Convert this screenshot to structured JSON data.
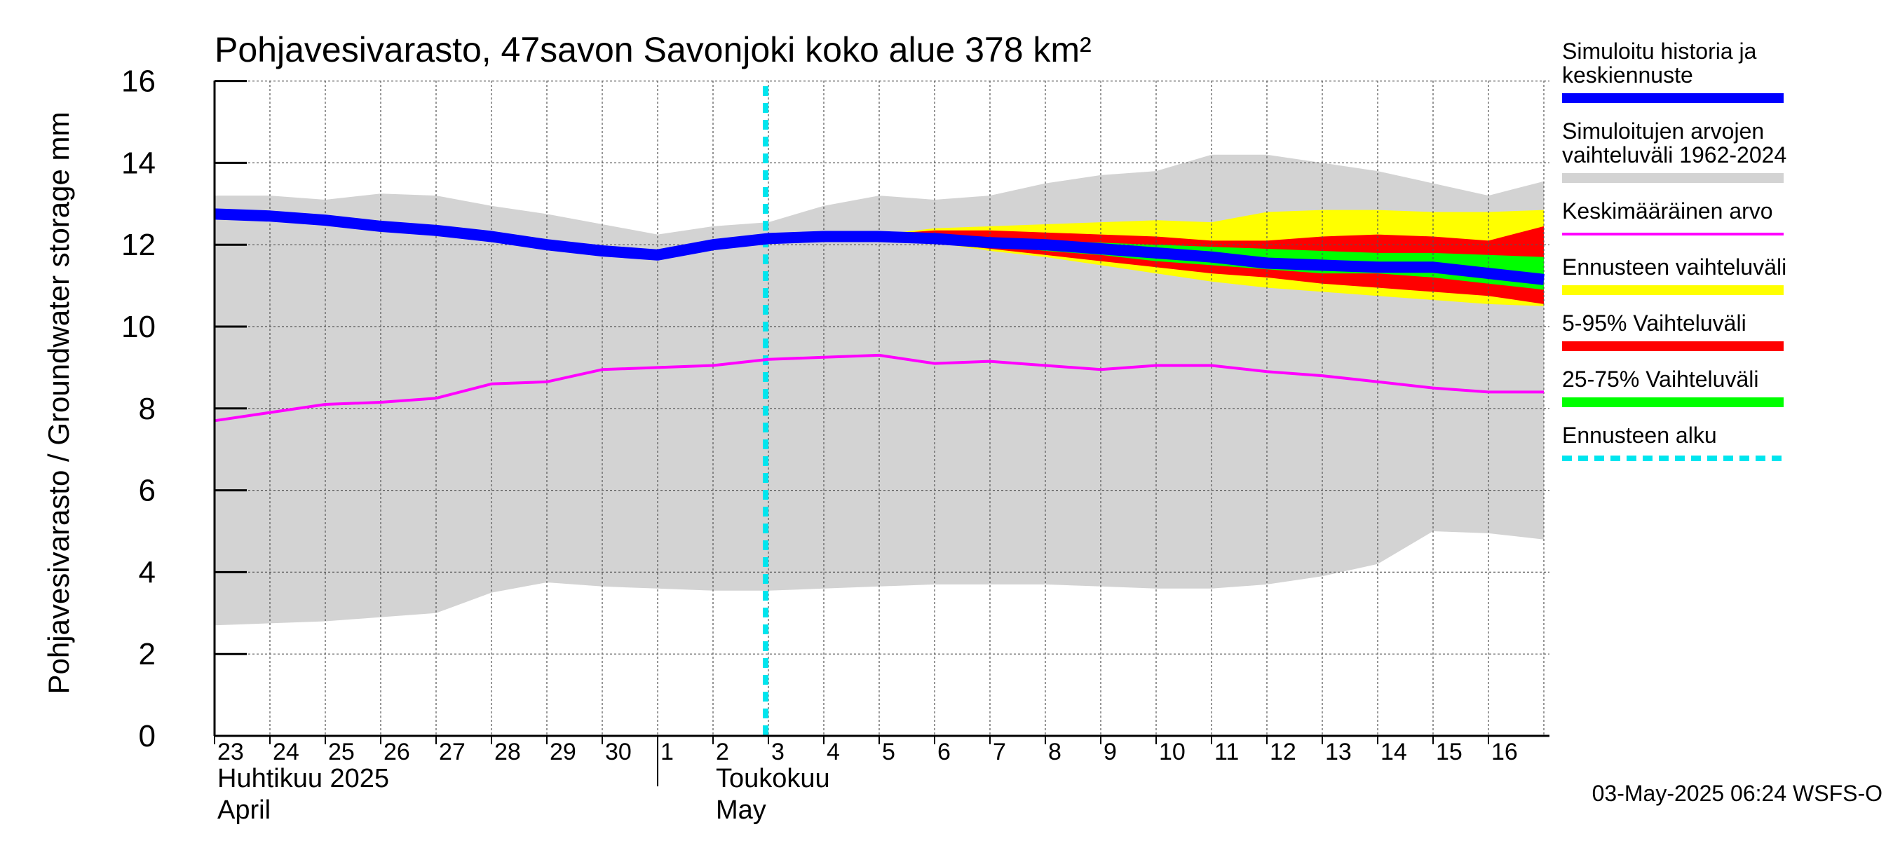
{
  "chart_data": {
    "type": "area",
    "title": "Pohjavesivarasto, 47savon Savonjoki koko alue 378 km²",
    "ylabel": "Pohjavesivarasto / Groundwater storage   mm",
    "ylim": [
      0,
      16
    ],
    "yticks": [
      "0",
      "2",
      "4",
      "6",
      "8",
      "10",
      "12",
      "14",
      "16"
    ],
    "xlim": [
      0,
      24
    ],
    "x_ticks": [
      {
        "x": 0,
        "label": "23"
      },
      {
        "x": 1,
        "label": "24"
      },
      {
        "x": 2,
        "label": "25"
      },
      {
        "x": 3,
        "label": "26"
      },
      {
        "x": 4,
        "label": "27"
      },
      {
        "x": 5,
        "label": "28"
      },
      {
        "x": 6,
        "label": "29"
      },
      {
        "x": 7,
        "label": "30"
      },
      {
        "x": 8,
        "label": "1"
      },
      {
        "x": 9,
        "label": "2"
      },
      {
        "x": 10,
        "label": "3"
      },
      {
        "x": 11,
        "label": "4"
      },
      {
        "x": 12,
        "label": "5"
      },
      {
        "x": 13,
        "label": "6"
      },
      {
        "x": 14,
        "label": "7"
      },
      {
        "x": 15,
        "label": "8"
      },
      {
        "x": 16,
        "label": "9"
      },
      {
        "x": 17,
        "label": "10"
      },
      {
        "x": 18,
        "label": "11"
      },
      {
        "x": 19,
        "label": "12"
      },
      {
        "x": 20,
        "label": "13"
      },
      {
        "x": 21,
        "label": "14"
      },
      {
        "x": 22,
        "label": "15"
      },
      {
        "x": 23,
        "label": "16"
      }
    ],
    "month_labels": [
      {
        "x": 0,
        "line1": "Huhtikuu  2025",
        "line2": "April"
      },
      {
        "x": 9,
        "line1": "Toukokuu",
        "line2": "May"
      }
    ],
    "month_divider_x": 8,
    "forecast_start_x": 10,
    "grid": true,
    "series": [
      {
        "name": "Simuloitujen arvojen vaihteluväli 1962-2024",
        "kind": "band",
        "color": "#d3d3d3",
        "x": [
          0,
          1,
          2,
          3,
          4,
          5,
          6,
          7,
          8,
          9,
          10,
          11,
          12,
          13,
          14,
          15,
          16,
          17,
          18,
          19,
          20,
          21,
          22,
          23,
          24
        ],
        "upper": [
          13.2,
          13.2,
          13.1,
          13.25,
          13.2,
          12.95,
          12.75,
          12.5,
          12.25,
          12.45,
          12.55,
          12.95,
          13.2,
          13.1,
          13.2,
          13.5,
          13.7,
          13.8,
          14.2,
          14.2,
          14.0,
          13.8,
          13.5,
          13.2,
          13.55
        ],
        "lower": [
          2.7,
          2.75,
          2.8,
          2.9,
          3.0,
          3.5,
          3.75,
          3.65,
          3.6,
          3.55,
          3.55,
          3.6,
          3.65,
          3.7,
          3.7,
          3.7,
          3.65,
          3.6,
          3.6,
          3.7,
          3.9,
          4.2,
          5.0,
          4.95,
          4.8
        ]
      },
      {
        "name": "Ennusteen vaihteluväli",
        "kind": "band",
        "color": "#ffff00",
        "x": [
          12,
          13,
          14,
          15,
          16,
          17,
          18,
          19,
          20,
          21,
          22,
          23,
          24
        ],
        "upper": [
          12.25,
          12.4,
          12.45,
          12.5,
          12.55,
          12.6,
          12.55,
          12.8,
          12.85,
          12.85,
          12.8,
          12.8,
          12.85
        ],
        "lower": [
          12.2,
          12.05,
          11.85,
          11.7,
          11.5,
          11.3,
          11.1,
          10.95,
          10.85,
          10.75,
          10.65,
          10.55,
          10.5
        ]
      },
      {
        "name": "5-95% Vaihteluväli",
        "kind": "band",
        "color": "#ff0000",
        "x": [
          12,
          13,
          14,
          15,
          16,
          17,
          18,
          19,
          20,
          21,
          22,
          23,
          24
        ],
        "upper": [
          12.25,
          12.35,
          12.35,
          12.3,
          12.25,
          12.2,
          12.1,
          12.1,
          12.2,
          12.25,
          12.2,
          12.1,
          12.45
        ],
        "lower": [
          12.2,
          12.05,
          11.9,
          11.75,
          11.6,
          11.45,
          11.3,
          11.2,
          11.05,
          10.95,
          10.85,
          10.75,
          10.55
        ]
      },
      {
        "name": "25-75% Vaihteluväli",
        "kind": "band",
        "color": "#00ff00",
        "x": [
          12,
          13,
          14,
          15,
          16,
          17,
          18,
          19,
          20,
          21,
          22,
          23,
          24
        ],
        "upper": [
          12.22,
          12.2,
          12.15,
          12.1,
          12.05,
          12.0,
          11.95,
          11.9,
          11.85,
          11.8,
          11.8,
          11.75,
          11.7
        ],
        "lower": [
          12.2,
          12.1,
          12.0,
          11.85,
          11.75,
          11.6,
          11.5,
          11.4,
          11.3,
          11.3,
          11.2,
          11.05,
          10.9
        ]
      },
      {
        "name": "Keskimääräinen arvo",
        "kind": "line",
        "color": "#ff00ff",
        "x": [
          0,
          1,
          2,
          3,
          4,
          5,
          6,
          7,
          8,
          9,
          10,
          11,
          12,
          13,
          14,
          15,
          16,
          17,
          18,
          19,
          20,
          21,
          22,
          23,
          24
        ],
        "values": [
          7.7,
          7.9,
          8.1,
          8.15,
          8.25,
          8.6,
          8.65,
          8.95,
          9.0,
          9.05,
          9.2,
          9.25,
          9.3,
          9.1,
          9.15,
          9.05,
          8.95,
          9.05,
          9.05,
          8.9,
          8.8,
          8.65,
          8.5,
          8.4,
          8.4
        ]
      },
      {
        "name": "Simuloitu historia ja keskiennuste",
        "kind": "line",
        "color": "#0000ff",
        "x": [
          0,
          1,
          2,
          3,
          4,
          5,
          6,
          7,
          8,
          9,
          10,
          11,
          12,
          13,
          14,
          15,
          16,
          17,
          18,
          19,
          20,
          21,
          22,
          23,
          24
        ],
        "values": [
          12.75,
          12.7,
          12.6,
          12.45,
          12.35,
          12.2,
          12.0,
          11.85,
          11.75,
          12.0,
          12.15,
          12.2,
          12.2,
          12.15,
          12.05,
          12.0,
          11.9,
          11.8,
          11.7,
          11.55,
          11.5,
          11.45,
          11.45,
          11.3,
          11.15
        ]
      }
    ],
    "legend": {
      "placement": "right",
      "entries": [
        {
          "line1": "Simuloitu historia ja",
          "line2": "keskiennuste",
          "color": "#0000ff",
          "style": "thick"
        },
        {
          "line1": "Simuloitujen arvojen",
          "line2": "vaihteluväli 1962-2024",
          "color": "#d3d3d3",
          "style": "thick"
        },
        {
          "line1": "Keskimääräinen arvo",
          "line2": "",
          "color": "#ff00ff",
          "style": "thin"
        },
        {
          "line1": "Ennusteen vaihteluväli",
          "line2": "",
          "color": "#ffff00",
          "style": "thick"
        },
        {
          "line1": "5-95% Vaihteluväli",
          "line2": "",
          "color": "#ff0000",
          "style": "thick"
        },
        {
          "line1": "25-75% Vaihteluväli",
          "line2": "",
          "color": "#00ff00",
          "style": "thick"
        },
        {
          "line1": "Ennusteen alku",
          "line2": "",
          "color": "#00e5ee",
          "style": "dashed"
        }
      ]
    },
    "footer": "03-May-2025 06:24 WSFS-O"
  }
}
